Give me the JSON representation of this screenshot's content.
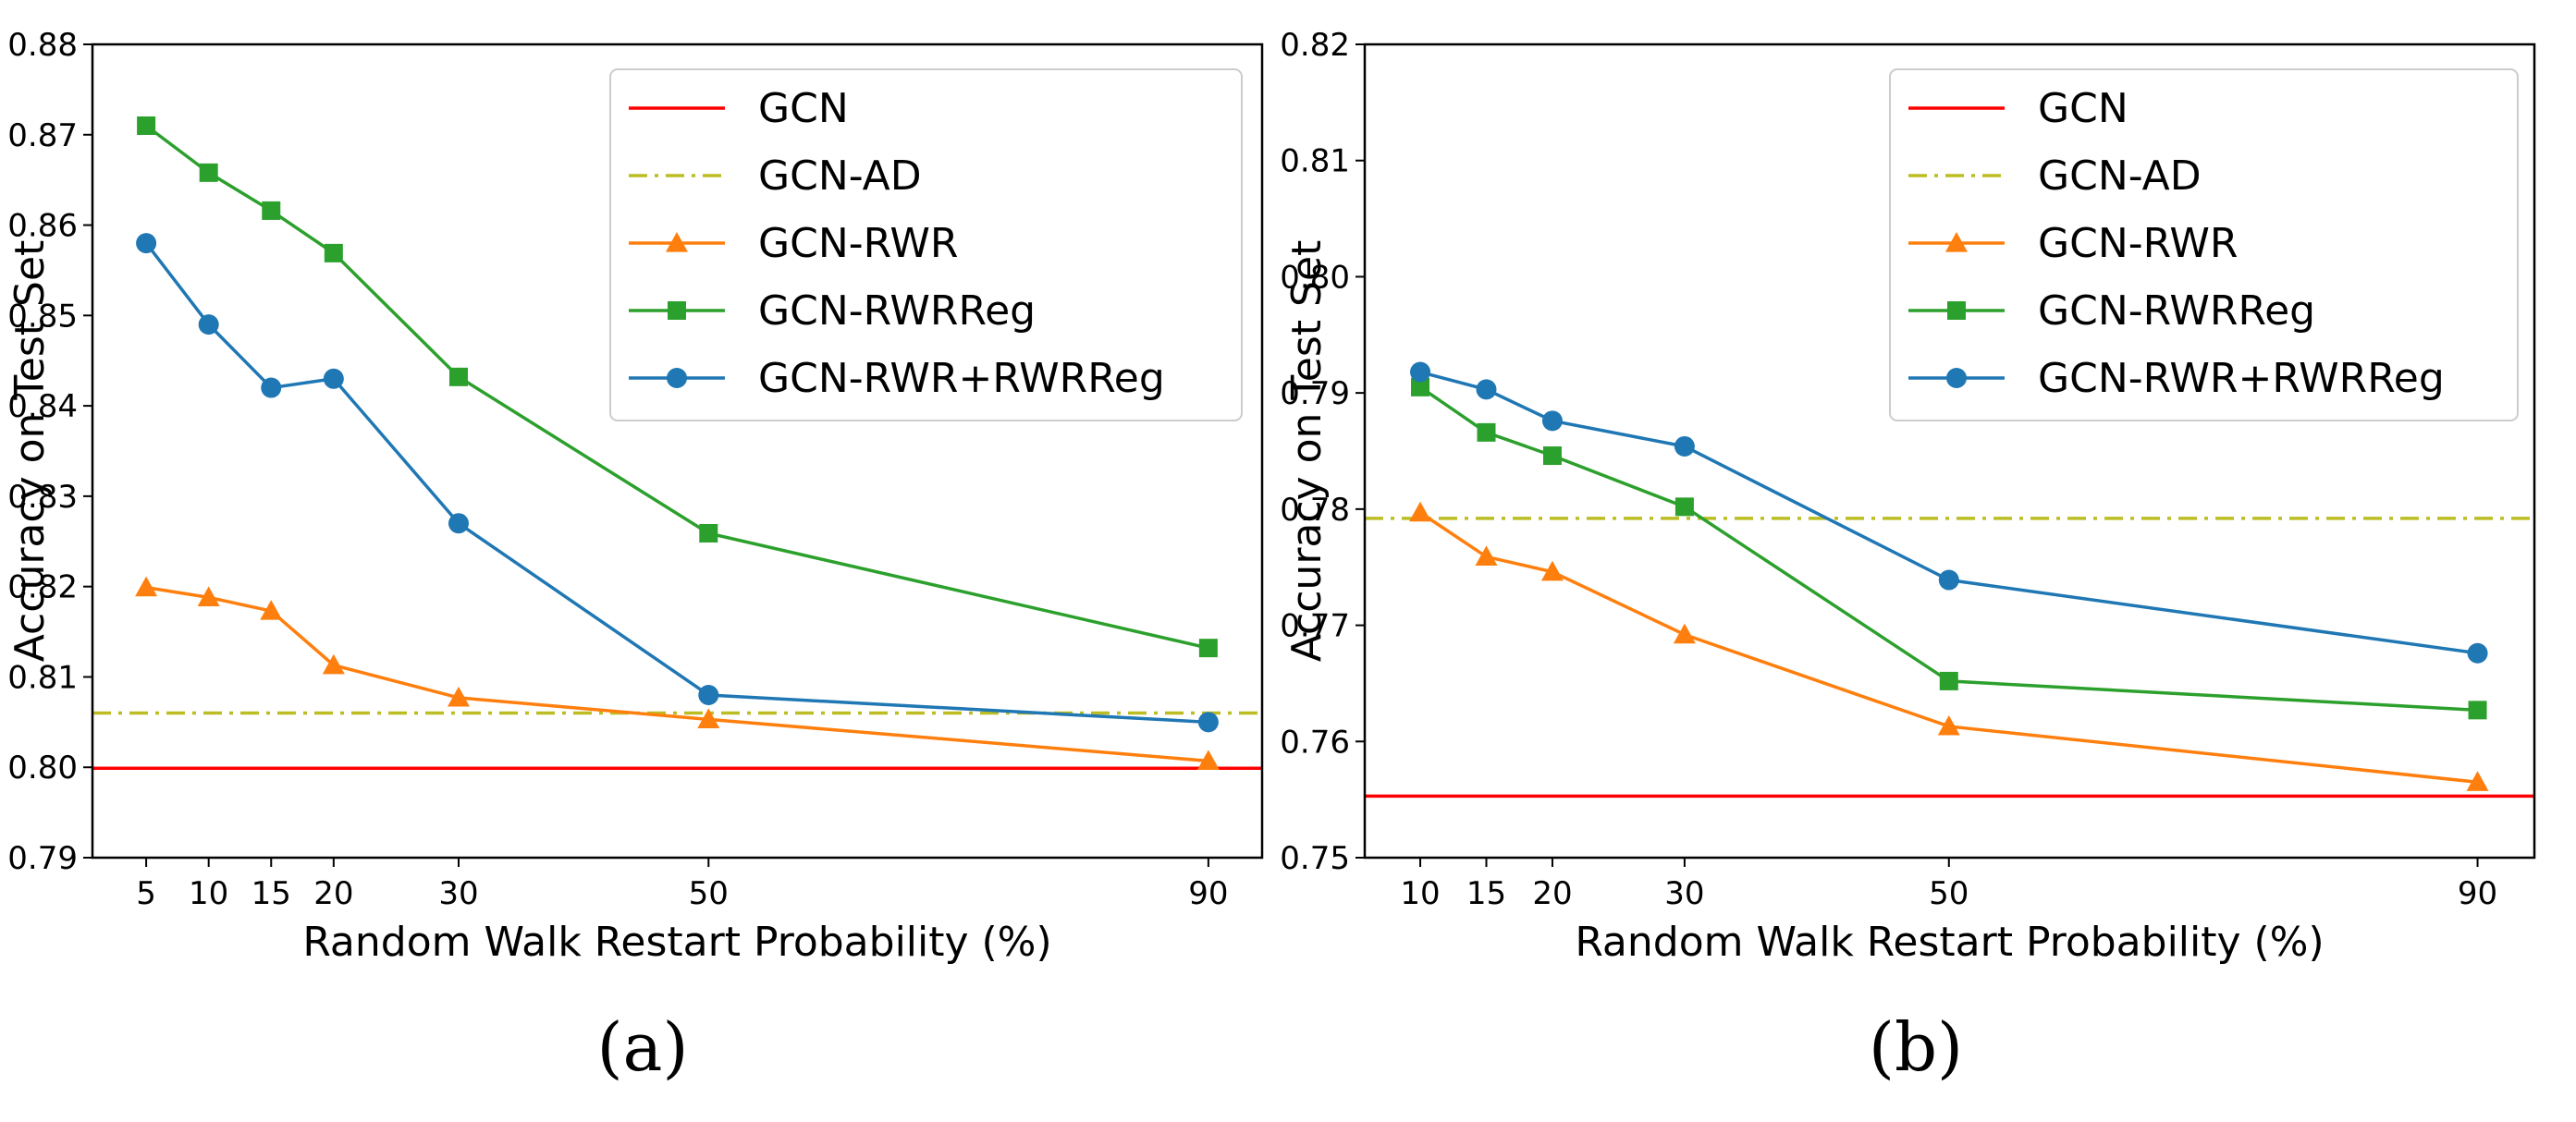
{
  "colors": {
    "GCN": "#ff0000",
    "GCN-AD": "#bcbd22",
    "GCN-RWR": "#ff7f0e",
    "GCN-RWRReg": "#2ca02c",
    "GCN-RWR+RWRReg": "#1f77b4"
  },
  "chart_data": [
    {
      "type": "line",
      "caption": "(a)",
      "xlabel": "Random Walk Restart Probability (%)",
      "ylabel": "Accuracy on Test Set",
      "x": [
        5,
        10,
        15,
        20,
        30,
        50,
        90
      ],
      "xticks": [
        5,
        10,
        15,
        20,
        30,
        50,
        90
      ],
      "xlim": [
        0.7,
        94.3
      ],
      "ylim": [
        0.79,
        0.88
      ],
      "yticks": [
        "0.79",
        "0.80",
        "0.81",
        "0.82",
        "0.83",
        "0.84",
        "0.85",
        "0.86",
        "0.87",
        "0.88"
      ],
      "legend_position": "top-right",
      "hlines": [
        {
          "name": "GCN",
          "value": 0.7999,
          "style": "solid"
        },
        {
          "name": "GCN-AD",
          "value": 0.806,
          "style": "dashdot"
        }
      ],
      "series": [
        {
          "name": "GCN-RWR",
          "marker": "triangle",
          "values": [
            0.8199,
            0.8188,
            0.8173,
            0.8113,
            0.8077,
            0.8053,
            0.8007
          ]
        },
        {
          "name": "GCN-RWRReg",
          "marker": "square",
          "values": [
            0.871,
            0.8658,
            0.8616,
            0.8569,
            0.8432,
            0.8259,
            0.8132
          ]
        },
        {
          "name": "GCN-RWR+RWRReg",
          "marker": "circle",
          "values": [
            0.858,
            0.849,
            0.842,
            0.843,
            0.827,
            0.808,
            0.805
          ]
        }
      ],
      "legend": [
        "GCN",
        "GCN-AD",
        "GCN-RWR",
        "GCN-RWRReg",
        "GCN-RWR+RWRReg"
      ]
    },
    {
      "type": "line",
      "caption": "(b)",
      "xlabel": "Random Walk Restart Probability (%)",
      "ylabel": "Accuracy on Test Set",
      "x": [
        10,
        15,
        20,
        30,
        50,
        90
      ],
      "xticks": [
        10,
        15,
        20,
        30,
        50,
        90
      ],
      "xlim": [
        5.8,
        94.3
      ],
      "ylim": [
        0.75,
        0.82
      ],
      "yticks": [
        "0.75",
        "0.76",
        "0.77",
        "0.78",
        "0.79",
        "0.80",
        "0.81",
        "0.82"
      ],
      "legend_position": "top-right",
      "hlines": [
        {
          "name": "GCN",
          "value": 0.7553,
          "style": "solid"
        },
        {
          "name": "GCN-AD",
          "value": 0.7792,
          "style": "dashdot"
        }
      ],
      "series": [
        {
          "name": "GCN-RWR",
          "marker": "triangle",
          "values": [
            0.7797,
            0.7759,
            0.7746,
            0.7692,
            0.7613,
            0.7565
          ]
        },
        {
          "name": "GCN-RWRReg",
          "marker": "square",
          "values": [
            0.7905,
            0.7866,
            0.7846,
            0.7802,
            0.7652,
            0.7627
          ]
        },
        {
          "name": "GCN-RWR+RWRReg",
          "marker": "circle",
          "values": [
            0.7918,
            0.7903,
            0.7876,
            0.7854,
            0.7739,
            0.7676
          ]
        }
      ],
      "legend": [
        "GCN",
        "GCN-AD",
        "GCN-RWR",
        "GCN-RWRReg",
        "GCN-RWR+RWRReg"
      ]
    }
  ]
}
